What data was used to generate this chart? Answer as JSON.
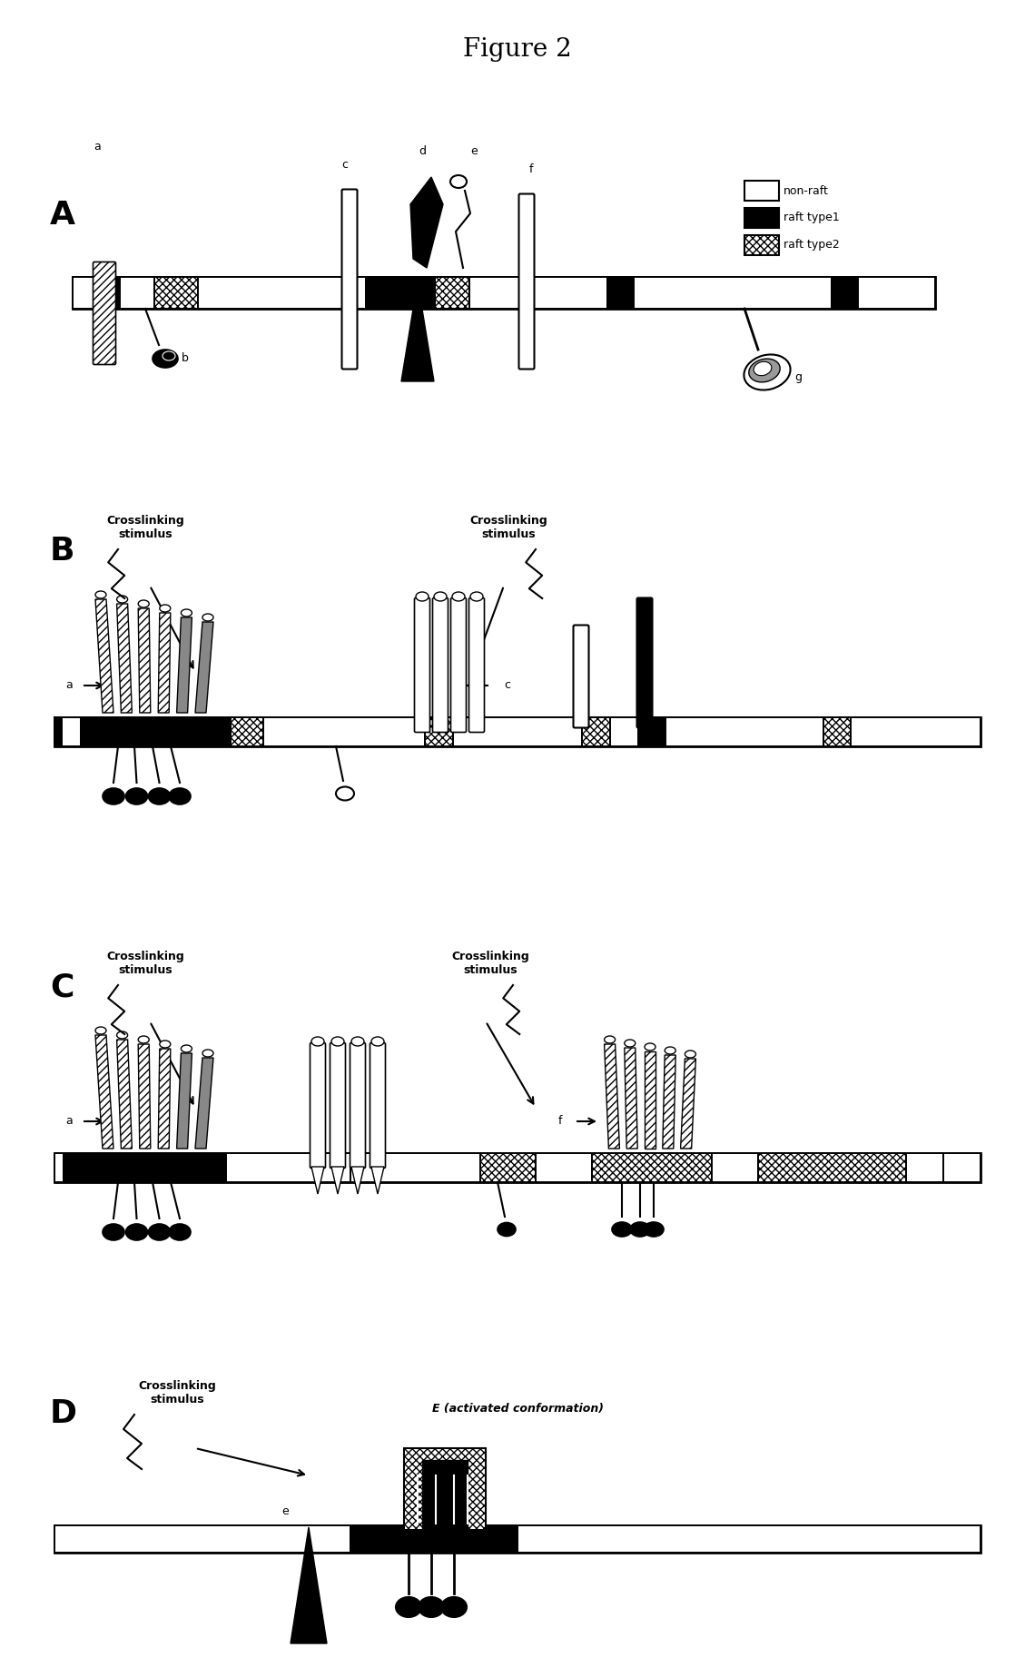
{
  "title": "Figure 2",
  "title_fontsize": 20,
  "bg_color": "#ffffff",
  "legend_items": [
    "non-raft",
    "raft type1",
    "raft type2"
  ],
  "crosslinking_fontsize": 9
}
